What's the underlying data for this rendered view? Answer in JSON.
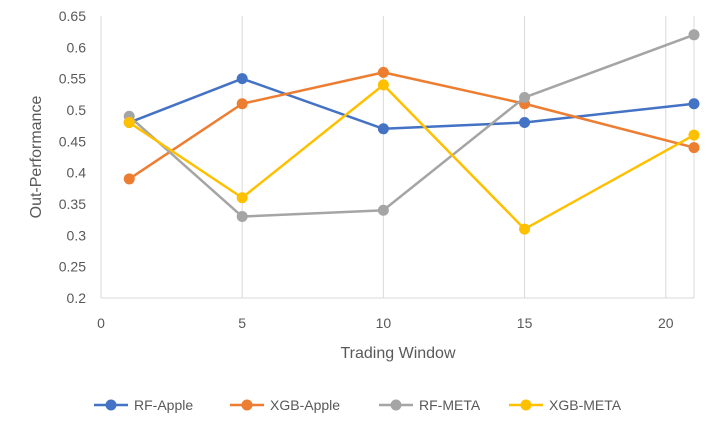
{
  "chart_data": {
    "type": "line",
    "title": "",
    "xlabel": "Trading Window",
    "ylabel": "Out-Performance",
    "xlim": [
      0,
      21
    ],
    "ylim": [
      0.2,
      0.65
    ],
    "x_ticks": [
      "0",
      "5",
      "10",
      "15",
      "20"
    ],
    "y_ticks": [
      "0.2",
      "0.25",
      "0.3",
      "0.35",
      "0.4",
      "0.45",
      "0.5",
      "0.55",
      "0.6",
      "0.65"
    ],
    "grid": "vertical",
    "legend": "bottom",
    "x": [
      1,
      5,
      10,
      15,
      21
    ],
    "series": [
      {
        "name": "RF-Apple",
        "color": "#4472C4",
        "values": [
          0.48,
          0.55,
          0.47,
          0.48,
          0.51
        ]
      },
      {
        "name": "XGB-Apple",
        "color": "#ED7D31",
        "values": [
          0.39,
          0.51,
          0.56,
          0.51,
          0.44
        ]
      },
      {
        "name": "RF-META",
        "color": "#A5A5A5",
        "values": [
          0.49,
          0.33,
          0.34,
          0.52,
          0.62
        ]
      },
      {
        "name": "XGB-META",
        "color": "#FFC000",
        "values": [
          0.48,
          0.36,
          0.54,
          0.31,
          0.46
        ]
      }
    ]
  }
}
